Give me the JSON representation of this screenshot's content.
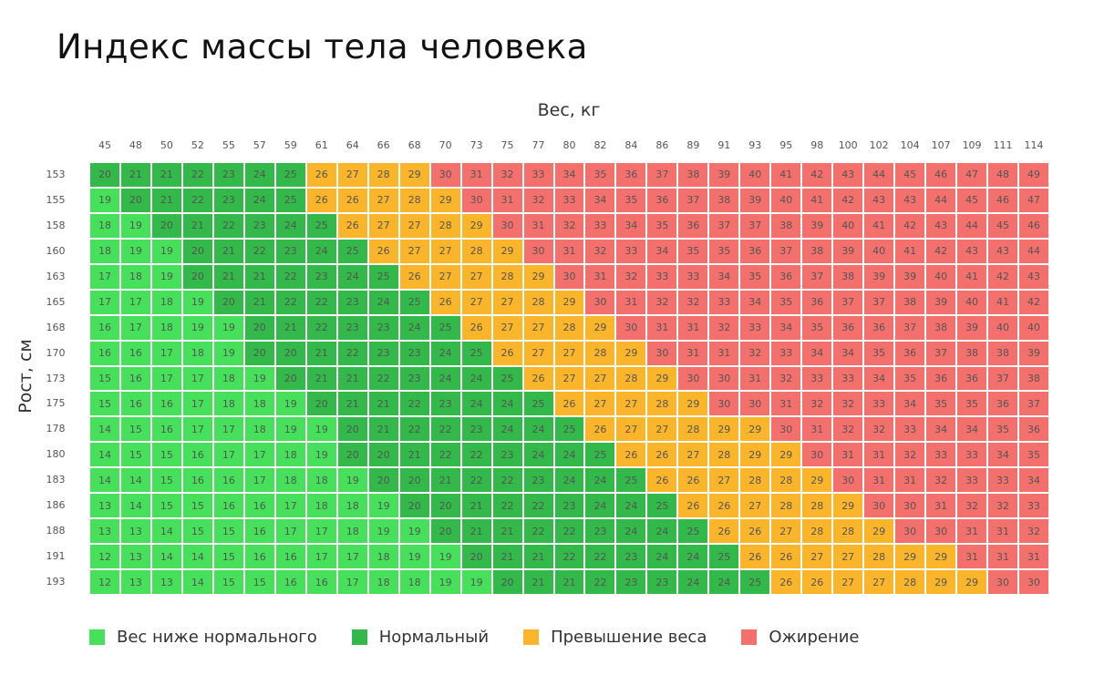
{
  "chart_data": {
    "type": "heatmap",
    "title": "Индекс массы тела человека",
    "xlabel": "Вес, кг",
    "ylabel": "Рост, см",
    "x": [
      45,
      48,
      50,
      52,
      55,
      57,
      59,
      61,
      64,
      66,
      68,
      70,
      73,
      75,
      77,
      80,
      82,
      84,
      86,
      89,
      91,
      93,
      95,
      98,
      100,
      102,
      104,
      107,
      109,
      111,
      114
    ],
    "y": [
      153,
      155,
      158,
      160,
      163,
      165,
      168,
      170,
      173,
      175,
      178,
      180,
      183,
      186,
      188,
      191,
      193
    ],
    "values": [
      [
        20,
        21,
        21,
        22,
        23,
        24,
        25,
        26,
        27,
        28,
        29,
        30,
        31,
        32,
        33,
        34,
        35,
        36,
        37,
        38,
        39,
        40,
        41,
        42,
        43,
        44,
        45,
        46,
        47,
        48,
        49
      ],
      [
        19,
        20,
        21,
        22,
        23,
        24,
        25,
        26,
        26,
        27,
        28,
        29,
        30,
        31,
        32,
        33,
        34,
        35,
        36,
        37,
        38,
        39,
        40,
        41,
        42,
        43,
        43,
        44,
        45,
        46,
        47
      ],
      [
        18,
        19,
        20,
        21,
        22,
        23,
        24,
        25,
        26,
        27,
        27,
        28,
        29,
        30,
        31,
        32,
        33,
        34,
        35,
        36,
        37,
        37,
        38,
        39,
        40,
        41,
        42,
        43,
        44,
        45,
        46
      ],
      [
        18,
        19,
        19,
        20,
        21,
        22,
        23,
        24,
        25,
        26,
        27,
        27,
        28,
        29,
        30,
        31,
        32,
        33,
        34,
        35,
        35,
        36,
        37,
        38,
        39,
        40,
        41,
        42,
        43,
        43,
        44
      ],
      [
        17,
        18,
        19,
        20,
        21,
        21,
        22,
        23,
        24,
        25,
        26,
        27,
        27,
        28,
        29,
        30,
        31,
        32,
        33,
        33,
        34,
        35,
        36,
        37,
        38,
        39,
        39,
        40,
        41,
        42,
        43
      ],
      [
        17,
        17,
        18,
        19,
        20,
        21,
        22,
        22,
        23,
        24,
        25,
        26,
        27,
        27,
        28,
        29,
        30,
        31,
        32,
        32,
        33,
        34,
        35,
        36,
        37,
        37,
        38,
        39,
        40,
        41,
        42
      ],
      [
        16,
        17,
        18,
        19,
        19,
        20,
        21,
        22,
        23,
        23,
        24,
        25,
        26,
        27,
        27,
        28,
        29,
        30,
        31,
        31,
        32,
        33,
        34,
        35,
        36,
        36,
        37,
        38,
        39,
        40,
        40
      ],
      [
        16,
        16,
        17,
        18,
        19,
        20,
        20,
        21,
        22,
        23,
        23,
        24,
        25,
        26,
        27,
        27,
        28,
        29,
        30,
        31,
        31,
        32,
        33,
        34,
        34,
        35,
        36,
        37,
        38,
        38,
        39
      ],
      [
        15,
        16,
        17,
        17,
        18,
        19,
        20,
        21,
        21,
        22,
        23,
        24,
        24,
        25,
        26,
        27,
        27,
        28,
        29,
        30,
        30,
        31,
        32,
        33,
        33,
        34,
        35,
        36,
        36,
        37,
        38
      ],
      [
        15,
        16,
        16,
        17,
        18,
        18,
        19,
        20,
        21,
        21,
        22,
        23,
        24,
        24,
        25,
        26,
        27,
        27,
        28,
        29,
        30,
        30,
        31,
        32,
        32,
        33,
        34,
        35,
        35,
        36,
        37
      ],
      [
        14,
        15,
        16,
        17,
        17,
        18,
        19,
        19,
        20,
        21,
        22,
        22,
        23,
        24,
        24,
        25,
        26,
        27,
        27,
        28,
        29,
        29,
        30,
        31,
        32,
        32,
        33,
        34,
        34,
        35,
        36
      ],
      [
        14,
        15,
        15,
        16,
        17,
        17,
        18,
        19,
        20,
        20,
        21,
        22,
        22,
        23,
        24,
        24,
        25,
        26,
        26,
        27,
        28,
        29,
        29,
        30,
        31,
        31,
        32,
        33,
        33,
        34,
        35
      ],
      [
        14,
        14,
        15,
        16,
        16,
        17,
        18,
        18,
        19,
        20,
        20,
        21,
        22,
        22,
        23,
        24,
        24,
        25,
        26,
        26,
        27,
        28,
        28,
        29,
        30,
        31,
        31,
        32,
        33,
        33,
        34
      ],
      [
        13,
        14,
        15,
        15,
        16,
        16,
        17,
        18,
        18,
        19,
        20,
        20,
        21,
        22,
        22,
        23,
        24,
        24,
        25,
        26,
        26,
        27,
        28,
        28,
        29,
        30,
        30,
        31,
        32,
        32,
        33
      ],
      [
        13,
        13,
        14,
        15,
        15,
        16,
        17,
        17,
        18,
        19,
        19,
        20,
        21,
        21,
        22,
        22,
        23,
        24,
        24,
        25,
        26,
        26,
        27,
        28,
        28,
        29,
        30,
        30,
        31,
        31,
        32
      ],
      [
        12,
        13,
        14,
        14,
        15,
        16,
        16,
        17,
        17,
        18,
        19,
        19,
        20,
        21,
        21,
        22,
        22,
        23,
        24,
        24,
        25,
        26,
        26,
        27,
        27,
        28,
        29,
        29,
        31,
        31,
        31
      ],
      [
        12,
        13,
        13,
        14,
        15,
        15,
        16,
        16,
        17,
        18,
        18,
        19,
        19,
        20,
        21,
        21,
        22,
        23,
        23,
        24,
        24,
        25,
        26,
        26,
        27,
        27,
        28,
        29,
        29,
        30,
        30
      ]
    ],
    "categories": [
      {
        "label": "Вес ниже нормального",
        "max": 19,
        "color": "#47e05a"
      },
      {
        "label": "Нормальный",
        "max": 25,
        "color": "#33b84a"
      },
      {
        "label": "Превышение веса",
        "max": 29,
        "color": "#fab52a"
      },
      {
        "label": "Ожирение",
        "max": 99,
        "color": "#f3706c"
      }
    ],
    "legend": "bottom"
  }
}
